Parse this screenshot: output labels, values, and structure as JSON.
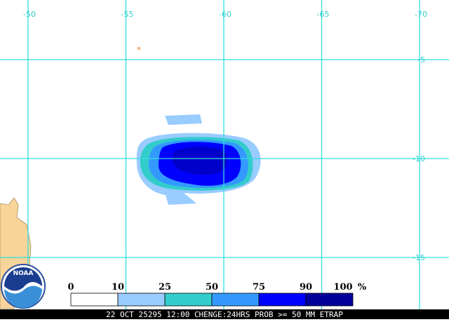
{
  "map": {
    "longitudes": [
      -50,
      -55,
      -60,
      -65,
      -70
    ],
    "latitudes": [
      -5,
      -10,
      -15
    ],
    "legend": {
      "ticks": [
        0,
        10,
        25,
        50,
        75,
        90,
        100
      ],
      "unit": "%",
      "colors": [
        "#ffffff",
        "#99ccff",
        "#33cccc",
        "#3399ff",
        "#0000ff",
        "#000099"
      ]
    },
    "logo": "NOAA",
    "caption": "22 OCT 25295 12:00 CHENGE:24HRS PROB >= 50 MM ETRAP"
  }
}
